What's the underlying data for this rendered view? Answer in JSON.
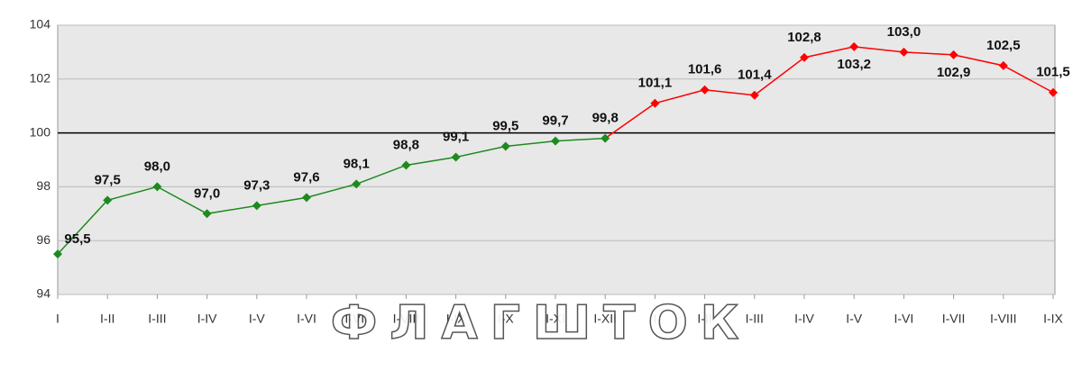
{
  "chart_data": {
    "type": "line",
    "categories": [
      "I",
      "I-II",
      "I-III",
      "I-IV",
      "I-V",
      "I-VI",
      "I-VII",
      "I-VIII",
      "I-IX",
      "I-X",
      "I-XI",
      "I-XII",
      "I",
      "I-II",
      "I-III",
      "I-IV",
      "I-V",
      "I-VI",
      "I-VII",
      "I-VIII",
      "I-IX"
    ],
    "series": [
      {
        "color": "#1e8a1e",
        "values": [
          95.5,
          97.5,
          98.0,
          97.0,
          97.3,
          97.6,
          98.1,
          98.8,
          99.1,
          99.5,
          99.7,
          99.8,
          null,
          null,
          null,
          null,
          null,
          null,
          null,
          null,
          null
        ],
        "value_labels": [
          "95,5",
          "97,5",
          "98,0",
          "97,0",
          "97,3",
          "97,6",
          "98,1",
          "98,8",
          "99,1",
          "99,5",
          "99,7",
          "99,8",
          null,
          null,
          null,
          null,
          null,
          null,
          null,
          null,
          null
        ]
      },
      {
        "color": "#ff0000",
        "values": [
          null,
          null,
          null,
          null,
          null,
          null,
          null,
          null,
          null,
          null,
          null,
          null,
          101.1,
          101.6,
          101.4,
          102.8,
          103.2,
          103.0,
          102.9,
          102.5,
          101.5
        ],
        "value_labels": [
          null,
          null,
          null,
          null,
          null,
          null,
          null,
          null,
          null,
          null,
          null,
          null,
          "101,1",
          "101,6",
          "101,4",
          "102,8",
          "103,2",
          "103,0",
          "102,9",
          "102,5",
          "101,5"
        ]
      }
    ],
    "ylim": [
      94,
      104
    ],
    "yticks": [
      94,
      96,
      98,
      100,
      102,
      104
    ],
    "grid": true,
    "annotations": [
      "ФЛАГШТОК"
    ]
  }
}
